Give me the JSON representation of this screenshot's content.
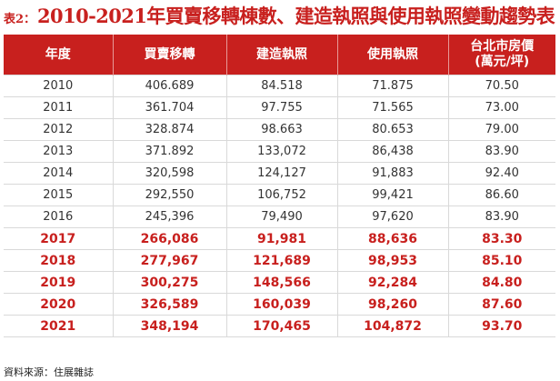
{
  "title": {
    "prefix": "表2：",
    "main": "2010-2021年買賣移轉棟數、建造執照與使用執照變動趨勢表"
  },
  "table": {
    "headers": [
      "年度",
      "買賣移轉",
      "建造執照",
      "使用執照",
      "台北市房價",
      "(萬元/坪)"
    ],
    "rows": [
      [
        "2010",
        "406.689",
        "84.518",
        "71.875",
        "70.50"
      ],
      [
        "2011",
        "361.704",
        "97.755",
        "71.565",
        "73.00"
      ],
      [
        "2012",
        "328.874",
        "98.663",
        "80.653",
        "79.00"
      ],
      [
        "2013",
        "371.892",
        "133,072",
        "86,438",
        "83.90"
      ],
      [
        "2014",
        "320,598",
        "124,127",
        "91,883",
        "92.40"
      ],
      [
        "2015",
        "292,550",
        "106,752",
        "99,421",
        "86.60"
      ],
      [
        "2016",
        "245,396",
        "79,490",
        "97,620",
        "83.90"
      ],
      [
        "2017",
        "266,086",
        "91,981",
        "88,636",
        "83.30"
      ],
      [
        "2018",
        "277,967",
        "121,689",
        "98,953",
        "85.10"
      ],
      [
        "2019",
        "300,275",
        "148,566",
        "92,284",
        "84.80"
      ],
      [
        "2020",
        "326,589",
        "160,039",
        "98,260",
        "87.60"
      ],
      [
        "2021",
        "348,194",
        "170,465",
        "104,872",
        "93.70"
      ]
    ]
  },
  "source": "資料來源：住展雜誌",
  "colors": {
    "accent_red": "#c8201e",
    "header_text": "#ffffff",
    "body_text": "#333333"
  }
}
